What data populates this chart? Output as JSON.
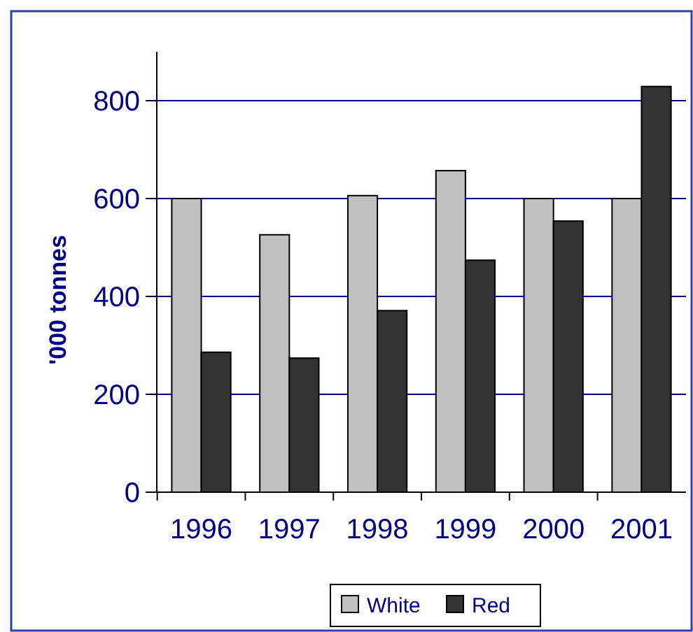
{
  "chart_data": {
    "type": "bar",
    "ylabel": "'000 tonnes",
    "categories": [
      "1996",
      "1997",
      "1998",
      "1999",
      "2000",
      "2001"
    ],
    "series": [
      {
        "name": "White",
        "color": "#c0c0c0",
        "values": [
          600,
          526,
          606,
          657,
          600,
          600
        ]
      },
      {
        "name": "Red",
        "color": "#333333",
        "values": [
          286,
          274,
          371,
          474,
          554,
          829
        ]
      }
    ],
    "ylim": [
      0,
      900
    ],
    "yticks": [
      0,
      200,
      400,
      600,
      800
    ],
    "grid": "y",
    "legend": "bottom"
  }
}
